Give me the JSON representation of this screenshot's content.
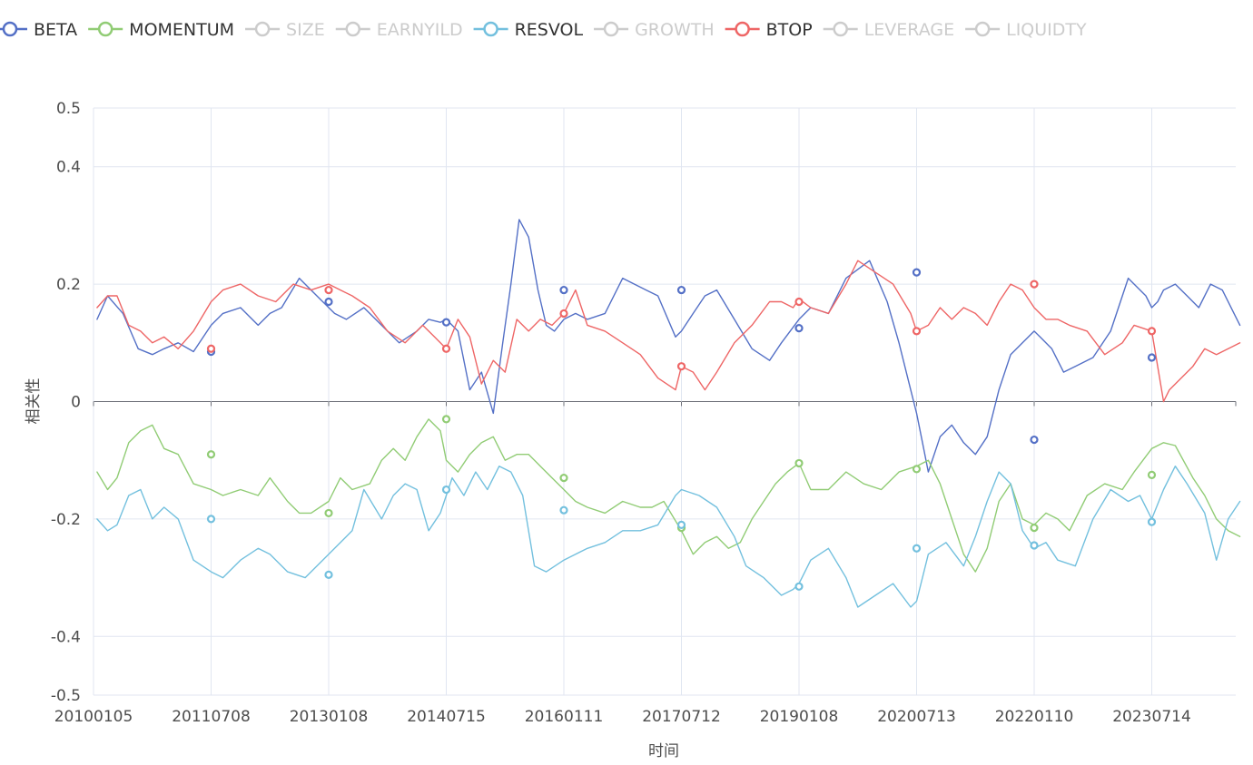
{
  "chart_data": {
    "type": "line",
    "xlabel": "时间",
    "ylabel": "相关性",
    "ylim": [
      -0.5,
      0.5
    ],
    "y_ticks": [
      {
        "value": 0.5,
        "label": "0.5"
      },
      {
        "value": 0.4,
        "label": "0.4"
      },
      {
        "value": 0.2,
        "label": "0.2"
      },
      {
        "value": 0,
        "label": "0"
      },
      {
        "value": -0.2,
        "label": "-0.2"
      },
      {
        "value": -0.4,
        "label": "-0.4"
      },
      {
        "value": -0.5,
        "label": "-0.5"
      }
    ],
    "x_ticks": [
      "20100105",
      "20110708",
      "20130108",
      "20140715",
      "20160111",
      "20170712",
      "20190108",
      "20200713",
      "20220110",
      "20230714"
    ],
    "x_domain": [
      0,
      9.75
    ],
    "legend": [
      {
        "name": "BETA",
        "color": "#5470c6",
        "active": true
      },
      {
        "name": "MOMENTUM",
        "color": "#91cc75",
        "active": true
      },
      {
        "name": "SIZE",
        "color": "#cccccc",
        "active": false
      },
      {
        "name": "EARNYILD",
        "color": "#cccccc",
        "active": false
      },
      {
        "name": "RESVOL",
        "color": "#73c0de",
        "active": true
      },
      {
        "name": "GROWTH",
        "color": "#cccccc",
        "active": false
      },
      {
        "name": "BTOP",
        "color": "#ee6666",
        "active": true
      },
      {
        "name": "LEVERAGE",
        "color": "#cccccc",
        "active": false
      },
      {
        "name": "LIQUIDTY",
        "color": "#cccccc",
        "active": false
      }
    ],
    "series": [
      {
        "name": "BETA",
        "color": "#5470c6",
        "x": [
          0.03,
          0.12,
          0.25,
          0.38,
          0.5,
          0.6,
          0.72,
          0.85,
          1.0,
          1.1,
          1.25,
          1.4,
          1.5,
          1.6,
          1.75,
          1.85,
          1.95,
          2.05,
          2.15,
          2.3,
          2.45,
          2.6,
          2.75,
          2.85,
          2.95,
          3.0,
          3.1,
          3.2,
          3.3,
          3.4,
          3.48,
          3.55,
          3.62,
          3.7,
          3.78,
          3.85,
          3.92,
          4.0,
          4.1,
          4.2,
          4.35,
          4.5,
          4.6,
          4.7,
          4.8,
          4.95,
          5.0,
          5.1,
          5.2,
          5.3,
          5.45,
          5.6,
          5.75,
          5.85,
          6.0,
          6.1,
          6.25,
          6.4,
          6.6,
          6.75,
          6.85,
          6.95,
          7.0,
          7.05,
          7.1,
          7.2,
          7.3,
          7.4,
          7.5,
          7.6,
          7.7,
          7.8,
          7.9,
          8.0,
          8.05,
          8.15,
          8.25,
          8.35,
          8.5,
          8.65,
          8.8,
          8.95,
          9.0,
          9.05,
          9.1,
          9.2,
          9.3,
          9.4,
          9.5,
          9.6,
          9.7,
          9.75
        ],
        "y": [
          0.14,
          0.18,
          0.15,
          0.09,
          0.08,
          0.09,
          0.1,
          0.085,
          0.13,
          0.15,
          0.16,
          0.13,
          0.15,
          0.16,
          0.21,
          0.19,
          0.17,
          0.15,
          0.14,
          0.16,
          0.13,
          0.1,
          0.12,
          0.14,
          0.135,
          0.14,
          0.12,
          0.02,
          0.05,
          -0.02,
          0.1,
          0.2,
          0.31,
          0.28,
          0.19,
          0.13,
          0.12,
          0.14,
          0.15,
          0.14,
          0.15,
          0.21,
          0.2,
          0.19,
          0.18,
          0.11,
          0.12,
          0.15,
          0.18,
          0.19,
          0.14,
          0.09,
          0.07,
          0.1,
          0.14,
          0.16,
          0.15,
          0.21,
          0.24,
          0.17,
          0.1,
          0.02,
          -0.02,
          -0.07,
          -0.12,
          -0.06,
          -0.04,
          -0.07,
          -0.09,
          -0.06,
          0.02,
          0.08,
          0.1,
          0.12,
          0.11,
          0.09,
          0.05,
          0.06,
          0.075,
          0.12,
          0.21,
          0.18,
          0.16,
          0.17,
          0.19,
          0.2,
          0.18,
          0.16,
          0.2,
          0.19,
          0.15,
          0.13
        ]
      },
      {
        "name": "MOMENTUM",
        "color": "#91cc75",
        "x": [
          0.03,
          0.12,
          0.2,
          0.3,
          0.4,
          0.5,
          0.6,
          0.72,
          0.85,
          1.0,
          1.1,
          1.25,
          1.4,
          1.5,
          1.65,
          1.75,
          1.85,
          2.0,
          2.1,
          2.2,
          2.35,
          2.45,
          2.55,
          2.65,
          2.75,
          2.85,
          2.95,
          3.0,
          3.1,
          3.2,
          3.3,
          3.4,
          3.5,
          3.6,
          3.7,
          3.8,
          3.9,
          4.0,
          4.1,
          4.2,
          4.35,
          4.5,
          4.65,
          4.75,
          4.85,
          5.0,
          5.1,
          5.2,
          5.3,
          5.4,
          5.5,
          5.6,
          5.7,
          5.8,
          5.9,
          6.0,
          6.1,
          6.25,
          6.4,
          6.55,
          6.7,
          6.85,
          7.0,
          7.1,
          7.2,
          7.3,
          7.4,
          7.5,
          7.6,
          7.7,
          7.8,
          7.9,
          8.0,
          8.1,
          8.2,
          8.3,
          8.45,
          8.6,
          8.75,
          8.85,
          9.0,
          9.1,
          9.2,
          9.35,
          9.45,
          9.55,
          9.65,
          9.75
        ],
        "y": [
          -0.12,
          -0.15,
          -0.13,
          -0.07,
          -0.05,
          -0.04,
          -0.08,
          -0.09,
          -0.14,
          -0.15,
          -0.16,
          -0.15,
          -0.16,
          -0.13,
          -0.17,
          -0.19,
          -0.19,
          -0.17,
          -0.13,
          -0.15,
          -0.14,
          -0.1,
          -0.08,
          -0.1,
          -0.06,
          -0.03,
          -0.05,
          -0.1,
          -0.12,
          -0.09,
          -0.07,
          -0.06,
          -0.1,
          -0.09,
          -0.09,
          -0.11,
          -0.13,
          -0.15,
          -0.17,
          -0.18,
          -0.19,
          -0.17,
          -0.18,
          -0.18,
          -0.17,
          -0.22,
          -0.26,
          -0.24,
          -0.23,
          -0.25,
          -0.24,
          -0.2,
          -0.17,
          -0.14,
          -0.12,
          -0.105,
          -0.15,
          -0.15,
          -0.12,
          -0.14,
          -0.15,
          -0.12,
          -0.11,
          -0.1,
          -0.14,
          -0.2,
          -0.26,
          -0.29,
          -0.25,
          -0.17,
          -0.14,
          -0.2,
          -0.21,
          -0.19,
          -0.2,
          -0.22,
          -0.16,
          -0.14,
          -0.15,
          -0.12,
          -0.08,
          -0.07,
          -0.075,
          -0.13,
          -0.16,
          -0.2,
          -0.22,
          -0.23
        ]
      },
      {
        "name": "RESVOL",
        "color": "#73c0de",
        "x": [
          0.03,
          0.12,
          0.2,
          0.3,
          0.4,
          0.5,
          0.6,
          0.72,
          0.85,
          1.0,
          1.1,
          1.25,
          1.4,
          1.5,
          1.65,
          1.8,
          1.95,
          2.05,
          2.2,
          2.3,
          2.45,
          2.55,
          2.65,
          2.75,
          2.85,
          2.95,
          3.05,
          3.15,
          3.25,
          3.35,
          3.45,
          3.55,
          3.65,
          3.75,
          3.85,
          4.0,
          4.1,
          4.2,
          4.35,
          4.5,
          4.65,
          4.8,
          4.95,
          5.0,
          5.15,
          5.3,
          5.45,
          5.55,
          5.7,
          5.85,
          5.95,
          6.0,
          6.1,
          6.25,
          6.4,
          6.5,
          6.65,
          6.8,
          6.95,
          7.0,
          7.1,
          7.25,
          7.4,
          7.5,
          7.6,
          7.7,
          7.8,
          7.9,
          8.0,
          8.1,
          8.2,
          8.35,
          8.5,
          8.65,
          8.8,
          8.9,
          9.0,
          9.1,
          9.2,
          9.3,
          9.45,
          9.55,
          9.65,
          9.75
        ],
        "y": [
          -0.2,
          -0.22,
          -0.21,
          -0.16,
          -0.15,
          -0.2,
          -0.18,
          -0.2,
          -0.27,
          -0.29,
          -0.3,
          -0.27,
          -0.25,
          -0.26,
          -0.29,
          -0.3,
          -0.27,
          -0.25,
          -0.22,
          -0.15,
          -0.2,
          -0.16,
          -0.14,
          -0.15,
          -0.22,
          -0.19,
          -0.13,
          -0.16,
          -0.12,
          -0.15,
          -0.11,
          -0.12,
          -0.16,
          -0.28,
          -0.29,
          -0.27,
          -0.26,
          -0.25,
          -0.24,
          -0.22,
          -0.22,
          -0.21,
          -0.16,
          -0.15,
          -0.16,
          -0.18,
          -0.23,
          -0.28,
          -0.3,
          -0.33,
          -0.32,
          -0.31,
          -0.27,
          -0.25,
          -0.3,
          -0.35,
          -0.33,
          -0.31,
          -0.35,
          -0.34,
          -0.26,
          -0.24,
          -0.28,
          -0.23,
          -0.17,
          -0.12,
          -0.14,
          -0.22,
          -0.25,
          -0.24,
          -0.27,
          -0.28,
          -0.2,
          -0.15,
          -0.17,
          -0.16,
          -0.2,
          -0.15,
          -0.11,
          -0.14,
          -0.19,
          -0.27,
          -0.2,
          -0.17
        ]
      },
      {
        "name": "BTOP",
        "color": "#ee6666",
        "x": [
          0.03,
          0.12,
          0.2,
          0.3,
          0.4,
          0.5,
          0.6,
          0.72,
          0.85,
          1.0,
          1.1,
          1.25,
          1.4,
          1.55,
          1.7,
          1.85,
          2.0,
          2.1,
          2.2,
          2.35,
          2.5,
          2.65,
          2.8,
          2.9,
          3.0,
          3.1,
          3.2,
          3.3,
          3.4,
          3.5,
          3.6,
          3.7,
          3.8,
          3.9,
          4.0,
          4.1,
          4.2,
          4.35,
          4.5,
          4.65,
          4.8,
          4.95,
          5.0,
          5.1,
          5.2,
          5.3,
          5.45,
          5.6,
          5.75,
          5.85,
          5.95,
          6.0,
          6.1,
          6.25,
          6.4,
          6.5,
          6.65,
          6.8,
          6.95,
          7.0,
          7.1,
          7.2,
          7.3,
          7.4,
          7.5,
          7.6,
          7.7,
          7.8,
          7.9,
          8.0,
          8.1,
          8.2,
          8.3,
          8.45,
          8.6,
          8.75,
          8.85,
          9.0,
          9.05,
          9.1,
          9.15,
          9.25,
          9.35,
          9.45,
          9.55,
          9.65,
          9.75
        ],
        "y": [
          0.16,
          0.18,
          0.18,
          0.13,
          0.12,
          0.1,
          0.11,
          0.09,
          0.12,
          0.17,
          0.19,
          0.2,
          0.18,
          0.17,
          0.2,
          0.19,
          0.2,
          0.19,
          0.18,
          0.16,
          0.12,
          0.1,
          0.13,
          0.11,
          0.09,
          0.14,
          0.11,
          0.03,
          0.07,
          0.05,
          0.14,
          0.12,
          0.14,
          0.13,
          0.15,
          0.19,
          0.13,
          0.12,
          0.1,
          0.08,
          0.04,
          0.02,
          0.06,
          0.05,
          0.02,
          0.05,
          0.1,
          0.13,
          0.17,
          0.17,
          0.16,
          0.175,
          0.16,
          0.15,
          0.2,
          0.24,
          0.22,
          0.2,
          0.15,
          0.12,
          0.13,
          0.16,
          0.14,
          0.16,
          0.15,
          0.13,
          0.17,
          0.2,
          0.19,
          0.16,
          0.14,
          0.14,
          0.13,
          0.12,
          0.08,
          0.1,
          0.13,
          0.12,
          0.06,
          0.0,
          0.02,
          0.04,
          0.06,
          0.09,
          0.08,
          0.09,
          0.1
        ]
      }
    ],
    "markers": [
      {
        "series": "BETA",
        "color": "#5470c6",
        "x": [
          1,
          2,
          3,
          4,
          5,
          6,
          7,
          8,
          9
        ],
        "y": [
          0.085,
          0.17,
          0.135,
          0.19,
          0.19,
          0.125,
          0.22,
          -0.065,
          0.075
        ]
      },
      {
        "series": "MOMENTUM",
        "color": "#91cc75",
        "x": [
          1,
          2,
          3,
          4,
          5,
          6,
          7,
          8,
          9
        ],
        "y": [
          -0.09,
          -0.19,
          -0.03,
          -0.13,
          -0.215,
          -0.105,
          -0.115,
          -0.215,
          -0.125
        ]
      },
      {
        "series": "RESVOL",
        "color": "#73c0de",
        "x": [
          1,
          2,
          3,
          4,
          5,
          6,
          7,
          8,
          9
        ],
        "y": [
          -0.2,
          -0.295,
          -0.15,
          -0.185,
          -0.21,
          -0.315,
          -0.25,
          -0.245,
          -0.205
        ]
      },
      {
        "series": "BTOP",
        "color": "#ee6666",
        "x": [
          1,
          2,
          3,
          4,
          5,
          6,
          7,
          8,
          9
        ],
        "y": [
          0.09,
          0.19,
          0.09,
          0.15,
          0.06,
          0.17,
          0.12,
          0.2,
          0.12
        ]
      }
    ]
  }
}
